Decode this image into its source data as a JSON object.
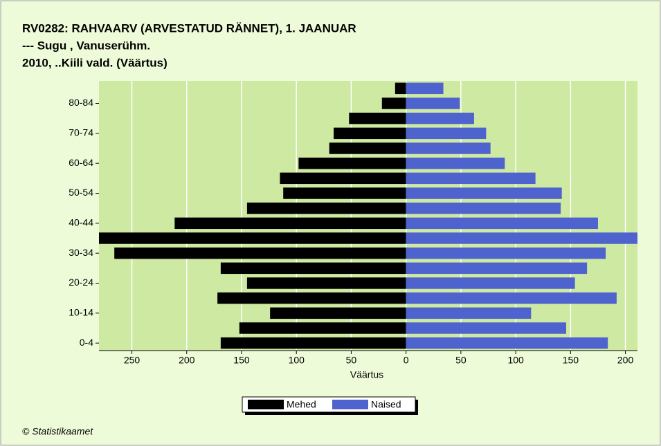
{
  "chart_data": {
    "type": "pyramid",
    "title": "RV0282: RAHVAARV (ARVESTATUD RÄNNET), 1. JAANUAR",
    "subtitle": [
      "--- Sugu , Vanuserühm.",
      "2010, ..Kiili vald. (Väärtus)"
    ],
    "x_label": "Väärtus",
    "source": "© Statistikaamet",
    "categories": [
      "0-4",
      null,
      "10-14",
      null,
      "20-24",
      null,
      "30-34",
      null,
      "40-44",
      null,
      "50-54",
      null,
      "60-64",
      null,
      "70-74",
      null,
      "80-84",
      null
    ],
    "series": [
      {
        "name": "Mehed",
        "color": "#000000",
        "values": [
          -169,
          -152,
          -124,
          -172,
          -145,
          -169,
          -266,
          -280,
          -211,
          -145,
          -112,
          -115,
          -98,
          -70,
          -66,
          -52,
          -22,
          -10
        ]
      },
      {
        "name": "Naised",
        "color": "#4f63cf",
        "values": [
          184,
          146,
          114,
          192,
          154,
          165,
          182,
          211,
          175,
          141,
          142,
          118,
          90,
          77,
          73,
          62,
          49,
          34
        ]
      }
    ],
    "xlim": [
      -280,
      211
    ],
    "xticks": [
      {
        "value": -250,
        "label": "250"
      },
      {
        "value": -200,
        "label": "200"
      },
      {
        "value": -150,
        "label": "150"
      },
      {
        "value": -100,
        "label": "100"
      },
      {
        "value": -50,
        "label": "50"
      },
      0,
      50,
      100,
      150,
      200
    ],
    "grid": true,
    "legend": "bottom"
  }
}
